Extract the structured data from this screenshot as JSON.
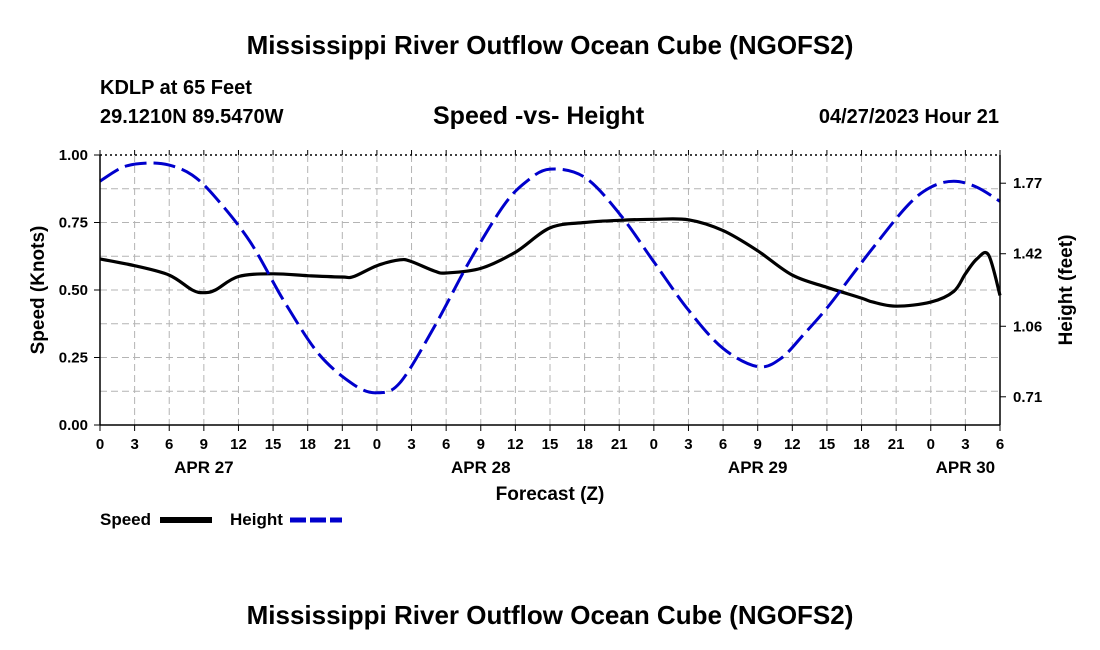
{
  "page": {
    "title_top": "Mississippi River Outflow Ocean Cube (NGOFS2)",
    "title_bottom": "Mississippi River Outflow Ocean Cube (NGOFS2)",
    "station": "KDLP at 65 Feet",
    "coords": "29.1210N  89.5470W",
    "subtitle": "Speed -vs- Height",
    "datetime": "04/27/2023 Hour 21"
  },
  "legend": {
    "speed_label": "Speed",
    "height_label": "Height"
  },
  "colors": {
    "speed": "#000000",
    "height": "#0000cc",
    "grid": "#b4b4b4"
  },
  "chart_data": {
    "type": "line",
    "xlabel": "Forecast (Z)",
    "ylabel": "Speed (Knots)",
    "y2label": "Height (feet)",
    "xlim": [
      0,
      78
    ],
    "ylim": [
      0,
      1
    ],
    "y2lim": [
      0.57,
      1.91
    ],
    "x_tick_labels": [
      "0",
      "3",
      "6",
      "9",
      "12",
      "15",
      "18",
      "21",
      "0",
      "3",
      "6",
      "9",
      "12",
      "15",
      "18",
      "21",
      "0",
      "3",
      "6",
      "9",
      "12",
      "15",
      "18",
      "21",
      "0",
      "3",
      "6"
    ],
    "date_labels": [
      {
        "x": 9,
        "label": "APR 27"
      },
      {
        "x": 33,
        "label": "APR 28"
      },
      {
        "x": 57,
        "label": "APR 29"
      },
      {
        "x": 75,
        "label": "APR 30"
      }
    ],
    "y_ticks": [
      "1.00",
      "0.75",
      "0.50",
      "0.25",
      "0.00"
    ],
    "y_tick_values": [
      1.0,
      0.75,
      0.5,
      0.25,
      0.0
    ],
    "y2_ticks": [
      "1.77",
      "1.42",
      "1.06",
      "0.71"
    ],
    "y2_tick_values": [
      1.77,
      1.42,
      1.06,
      0.71
    ],
    "series": [
      {
        "name": "Speed",
        "axis": "left",
        "style": "solid",
        "x": [
          0,
          3,
          6,
          8,
          9,
          10,
          12,
          15,
          18,
          21,
          22,
          24,
          26,
          27,
          29,
          30,
          33,
          36,
          39,
          42,
          45,
          48,
          51,
          54,
          57,
          60,
          63,
          66,
          67,
          69,
          72,
          74,
          75,
          76,
          77,
          78
        ],
        "values": [
          0.615,
          0.59,
          0.555,
          0.5,
          0.49,
          0.5,
          0.55,
          0.56,
          0.553,
          0.548,
          0.55,
          0.59,
          0.612,
          0.605,
          0.57,
          0.563,
          0.58,
          0.64,
          0.73,
          0.75,
          0.758,
          0.762,
          0.76,
          0.72,
          0.645,
          0.555,
          0.51,
          0.47,
          0.455,
          0.44,
          0.455,
          0.495,
          0.56,
          0.615,
          0.63,
          0.48
        ]
      },
      {
        "name": "Height",
        "axis": "right",
        "style": "dashed",
        "x": [
          0,
          2,
          4,
          6,
          8,
          10,
          13,
          16,
          19,
          22,
          24,
          26,
          29,
          32,
          35,
          37,
          39,
          42,
          45,
          48,
          51,
          54,
          57,
          59,
          61,
          63,
          65,
          67,
          70,
          72,
          74,
          76,
          78
        ],
        "values": [
          1.78,
          1.85,
          1.87,
          1.86,
          1.81,
          1.7,
          1.48,
          1.18,
          0.92,
          0.77,
          0.73,
          0.78,
          1.06,
          1.38,
          1.66,
          1.78,
          1.84,
          1.8,
          1.62,
          1.38,
          1.14,
          0.95,
          0.86,
          0.9,
          1.02,
          1.15,
          1.3,
          1.45,
          1.66,
          1.75,
          1.78,
          1.75,
          1.68
        ]
      }
    ]
  }
}
